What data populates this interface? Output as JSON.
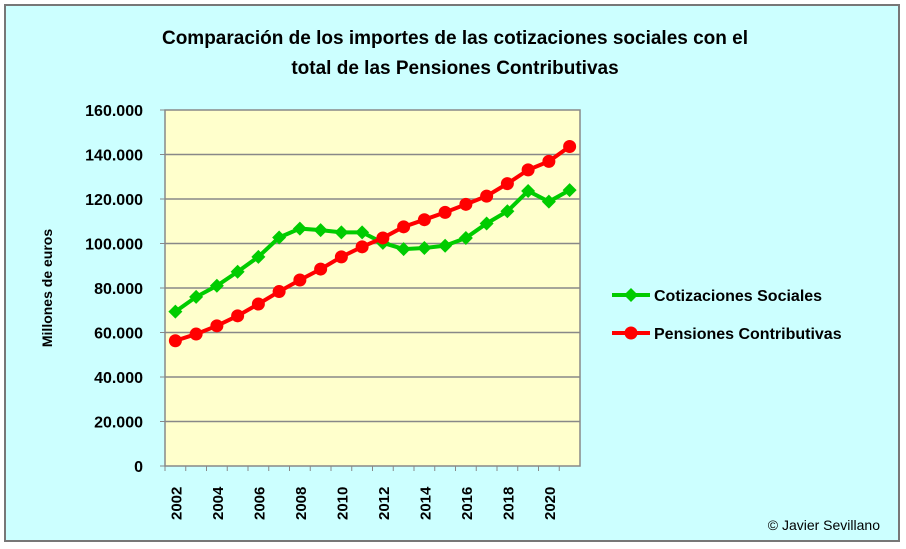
{
  "chart_data": {
    "type": "line",
    "title_lines": [
      "Comparación de los importes de las cotizaciones sociales con el",
      "total de las Pensiones Contributivas"
    ],
    "ylabel": "Millones de euros",
    "xlabel": "",
    "ylim": [
      0,
      160000
    ],
    "yticks": [
      0,
      20000,
      40000,
      60000,
      80000,
      100000,
      120000,
      140000,
      160000
    ],
    "ytick_labels": [
      "0",
      "20.000",
      "40.000",
      "60.000",
      "80.000",
      "100.000",
      "120.000",
      "140.000",
      "160.000"
    ],
    "x": [
      2002,
      2003,
      2004,
      2005,
      2006,
      2007,
      2008,
      2009,
      2010,
      2011,
      2012,
      2013,
      2014,
      2015,
      2016,
      2017,
      2018,
      2019,
      2020,
      2021
    ],
    "xtick_labels": [
      "2002",
      "2004",
      "2006",
      "2008",
      "2010",
      "2012",
      "2014",
      "2016",
      "2018",
      "2020"
    ],
    "grid": true,
    "legend_position": "right",
    "series": [
      {
        "name": "Cotizaciones Sociales",
        "color": "#00cc00",
        "marker": "diamond",
        "values": [
          69400,
          76000,
          81000,
          87300,
          94000,
          102700,
          106700,
          106000,
          105000,
          105000,
          100300,
          97500,
          98000,
          99000,
          102500,
          109000,
          114500,
          123600,
          118800,
          124000
        ]
      },
      {
        "name": "Pensiones Contributivas",
        "color": "#ff0000",
        "marker": "circle",
        "values": [
          56300,
          59300,
          63000,
          67500,
          72800,
          78400,
          83600,
          88500,
          94000,
          98500,
          102500,
          107500,
          110700,
          114000,
          117600,
          121300,
          126900,
          133100,
          136900,
          143600
        ]
      }
    ],
    "annotation": "© Javier Sevillano"
  }
}
